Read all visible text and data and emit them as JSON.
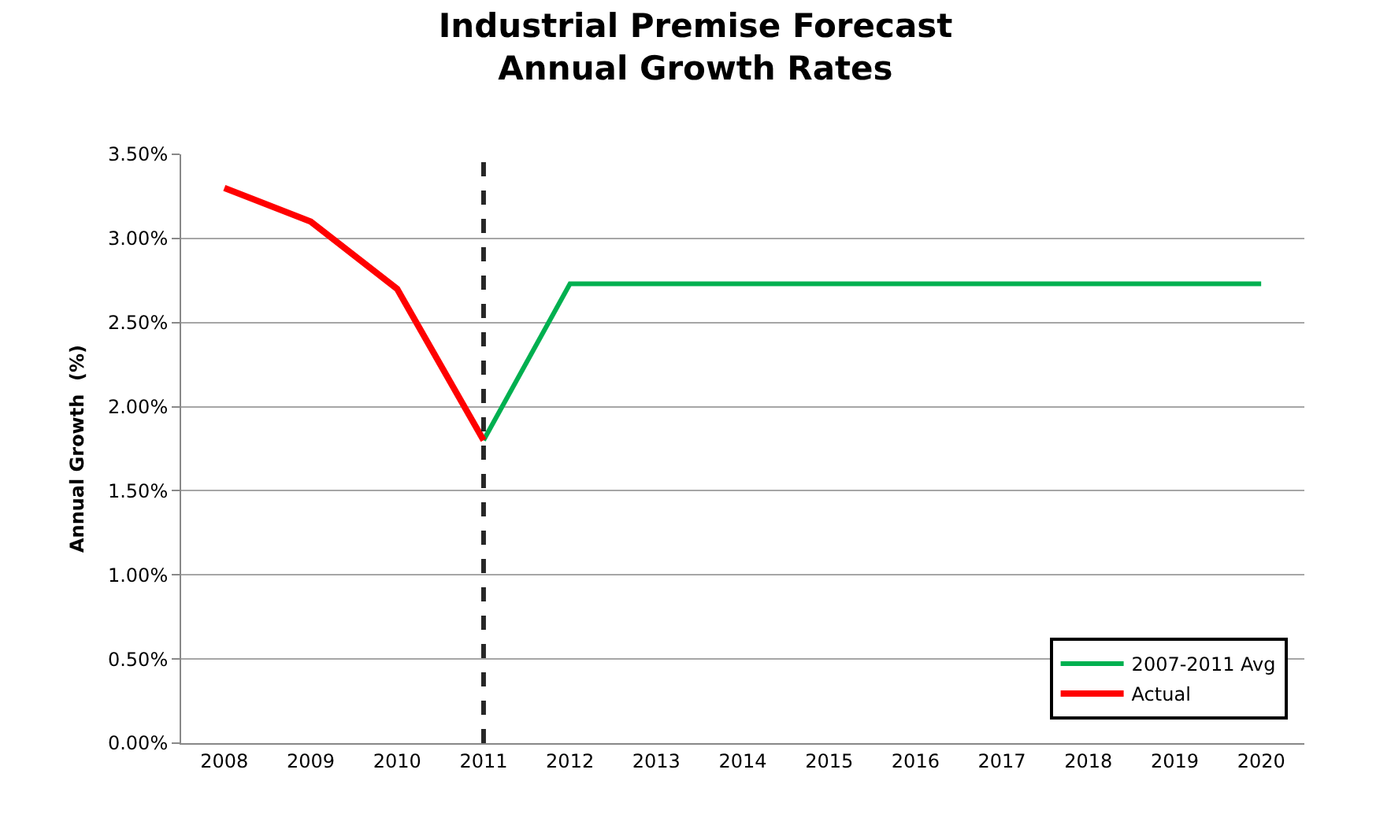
{
  "chart_data": {
    "type": "line",
    "title": "Industrial Premise Forecast\nAnnual Growth Rates",
    "ylabel": "Annual Growth  (%)",
    "categories": [
      "2008",
      "2009",
      "2010",
      "2011",
      "2012",
      "2013",
      "2014",
      "2015",
      "2016",
      "2017",
      "2018",
      "2019",
      "2020"
    ],
    "series": [
      {
        "name": "2007-2011 Avg",
        "color": "#00b050",
        "values": [
          null,
          null,
          null,
          1.8,
          2.73,
          2.73,
          2.73,
          2.73,
          2.73,
          2.73,
          2.73,
          2.73,
          2.73
        ]
      },
      {
        "name": "Actual",
        "color": "#ff0000",
        "values": [
          3.3,
          3.1,
          2.7,
          1.8,
          null,
          null,
          null,
          null,
          null,
          null,
          null,
          null,
          null
        ]
      }
    ],
    "ylim": [
      0,
      3.5
    ],
    "yticks": [
      {
        "value": 0,
        "label": "0.00%"
      },
      {
        "value": 0.5,
        "label": "0.50%"
      },
      {
        "value": 1,
        "label": "1.00%"
      },
      {
        "value": 1.5,
        "label": "1.50%"
      },
      {
        "value": 2,
        "label": "2.00%"
      },
      {
        "value": 2.5,
        "label": "2.50%"
      },
      {
        "value": 3,
        "label": "3.00%"
      },
      {
        "value": 3.5,
        "label": "3.50%"
      }
    ],
    "ref_lines": [
      {
        "axis": "x",
        "value": "2011",
        "color": "#262626",
        "line_style": "dashed"
      }
    ],
    "grid": "y",
    "legend": "bottom right",
    "marker": "none",
    "line_style": "solid"
  }
}
